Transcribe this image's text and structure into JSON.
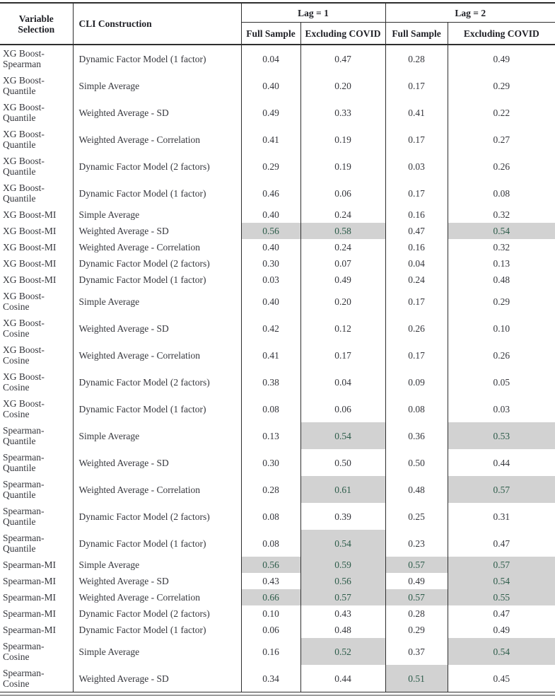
{
  "table": {
    "header": {
      "variable": "Variable Selection",
      "cli": "CLI Construction",
      "lag1": "Lag = 1",
      "lag2": "Lag = 2",
      "subcolumns": [
        "Full Sample",
        "Excluding COVID",
        "Full Sample",
        "Excluding COVID"
      ]
    },
    "colors": {
      "highlight_bg": "#d2d2d2",
      "highlight_text": "#2d5c4a",
      "rule": "#2e2e2e"
    },
    "rows": [
      {
        "variable": "XG Boost-Spearman",
        "cli": "Dynamic Factor Model (1 factor)",
        "values": [
          "0.04",
          "0.47",
          "0.28",
          "0.49"
        ],
        "highlight": [
          0,
          0,
          0,
          0
        ]
      },
      {
        "variable": "XG Boost-Quantile",
        "cli": "Simple Average",
        "values": [
          "0.40",
          "0.20",
          "0.17",
          "0.29"
        ],
        "highlight": [
          0,
          0,
          0,
          0
        ]
      },
      {
        "variable": "XG Boost-Quantile",
        "cli": "Weighted Average - SD",
        "values": [
          "0.49",
          "0.33",
          "0.41",
          "0.22"
        ],
        "highlight": [
          0,
          0,
          0,
          0
        ]
      },
      {
        "variable": "XG Boost-Quantile",
        "cli": "Weighted Average - Correlation",
        "values": [
          "0.41",
          "0.19",
          "0.17",
          "0.27"
        ],
        "highlight": [
          0,
          0,
          0,
          0
        ]
      },
      {
        "variable": "XG Boost-Quantile",
        "cli": "Dynamic Factor Model (2 factors)",
        "values": [
          "0.29",
          "0.19",
          "0.03",
          "0.26"
        ],
        "highlight": [
          0,
          0,
          0,
          0
        ]
      },
      {
        "variable": "XG Boost-Quantile",
        "cli": "Dynamic Factor Model (1 factor)",
        "values": [
          "0.46",
          "0.06",
          "0.17",
          "0.08"
        ],
        "highlight": [
          0,
          0,
          0,
          0
        ]
      },
      {
        "variable": "XG Boost-MI",
        "cli": "Simple Average",
        "values": [
          "0.40",
          "0.24",
          "0.16",
          "0.32"
        ],
        "highlight": [
          0,
          0,
          0,
          0
        ]
      },
      {
        "variable": "XG Boost-MI",
        "cli": "Weighted Average - SD",
        "values": [
          "0.56",
          "0.58",
          "0.47",
          "0.54"
        ],
        "highlight": [
          1,
          1,
          0,
          1
        ]
      },
      {
        "variable": "XG Boost-MI",
        "cli": "Weighted Average - Correlation",
        "values": [
          "0.40",
          "0.24",
          "0.16",
          "0.32"
        ],
        "highlight": [
          0,
          0,
          0,
          0
        ]
      },
      {
        "variable": "XG Boost-MI",
        "cli": "Dynamic Factor Model (2 factors)",
        "values": [
          "0.30",
          "0.07",
          "0.04",
          "0.13"
        ],
        "highlight": [
          0,
          0,
          0,
          0
        ]
      },
      {
        "variable": "XG Boost-MI",
        "cli": "Dynamic Factor Model (1 factor)",
        "values": [
          "0.03",
          "0.49",
          "0.24",
          "0.48"
        ],
        "highlight": [
          0,
          0,
          0,
          0
        ]
      },
      {
        "variable": "XG Boost-Cosine",
        "cli": "Simple Average",
        "values": [
          "0.40",
          "0.20",
          "0.17",
          "0.29"
        ],
        "highlight": [
          0,
          0,
          0,
          0
        ]
      },
      {
        "variable": "XG Boost-Cosine",
        "cli": "Weighted Average - SD",
        "values": [
          "0.42",
          "0.12",
          "0.26",
          "0.10"
        ],
        "highlight": [
          0,
          0,
          0,
          0
        ]
      },
      {
        "variable": "XG Boost-Cosine",
        "cli": "Weighted Average - Correlation",
        "values": [
          "0.41",
          "0.17",
          "0.17",
          "0.26"
        ],
        "highlight": [
          0,
          0,
          0,
          0
        ]
      },
      {
        "variable": "XG Boost-Cosine",
        "cli": "Dynamic Factor Model (2 factors)",
        "values": [
          "0.38",
          "0.04",
          "0.09",
          "0.05"
        ],
        "highlight": [
          0,
          0,
          0,
          0
        ]
      },
      {
        "variable": "XG Boost-Cosine",
        "cli": "Dynamic Factor Model (1 factor)",
        "values": [
          "0.08",
          "0.06",
          "0.08",
          "0.03"
        ],
        "highlight": [
          0,
          0,
          0,
          0
        ]
      },
      {
        "variable": "Spearman-Quantile",
        "cli": "Simple Average",
        "values": [
          "0.13",
          "0.54",
          "0.36",
          "0.53"
        ],
        "highlight": [
          0,
          1,
          0,
          1
        ]
      },
      {
        "variable": "Spearman-Quantile",
        "cli": "Weighted Average - SD",
        "values": [
          "0.30",
          "0.50",
          "0.50",
          "0.44"
        ],
        "highlight": [
          0,
          0,
          0,
          0
        ]
      },
      {
        "variable": "Spearman-Quantile",
        "cli": "Weighted Average - Correlation",
        "values": [
          "0.28",
          "0.61",
          "0.48",
          "0.57"
        ],
        "highlight": [
          0,
          1,
          0,
          1
        ]
      },
      {
        "variable": "Spearman-Quantile",
        "cli": "Dynamic Factor Model (2 factors)",
        "values": [
          "0.08",
          "0.39",
          "0.25",
          "0.31"
        ],
        "highlight": [
          0,
          0,
          0,
          0
        ]
      },
      {
        "variable": "Spearman-Quantile",
        "cli": "Dynamic Factor Model (1 factor)",
        "values": [
          "0.08",
          "0.54",
          "0.23",
          "0.47"
        ],
        "highlight": [
          0,
          1,
          0,
          0
        ]
      },
      {
        "variable": "Spearman-MI",
        "cli": "Simple Average",
        "values": [
          "0.56",
          "0.59",
          "0.57",
          "0.57"
        ],
        "highlight": [
          1,
          1,
          1,
          1
        ]
      },
      {
        "variable": "Spearman-MI",
        "cli": "Weighted Average - SD",
        "values": [
          "0.43",
          "0.56",
          "0.49",
          "0.54"
        ],
        "highlight": [
          0,
          1,
          0,
          1
        ]
      },
      {
        "variable": "Spearman-MI",
        "cli": "Weighted Average - Correlation",
        "values": [
          "0.66",
          "0.57",
          "0.57",
          "0.55"
        ],
        "highlight": [
          1,
          1,
          1,
          1
        ]
      },
      {
        "variable": "Spearman-MI",
        "cli": "Dynamic Factor Model (2 factors)",
        "values": [
          "0.10",
          "0.43",
          "0.28",
          "0.47"
        ],
        "highlight": [
          0,
          0,
          0,
          0
        ]
      },
      {
        "variable": "Spearman-MI",
        "cli": "Dynamic Factor Model (1 factor)",
        "values": [
          "0.06",
          "0.48",
          "0.29",
          "0.49"
        ],
        "highlight": [
          0,
          0,
          0,
          0
        ]
      },
      {
        "variable": "Spearman-Cosine",
        "cli": "Simple Average",
        "values": [
          "0.16",
          "0.52",
          "0.37",
          "0.54"
        ],
        "highlight": [
          0,
          1,
          0,
          1
        ]
      },
      {
        "variable": "Spearman-Cosine",
        "cli": "Weighted Average - SD",
        "values": [
          "0.34",
          "0.44",
          "0.51",
          "0.45"
        ],
        "highlight": [
          0,
          0,
          1,
          0
        ]
      }
    ]
  }
}
